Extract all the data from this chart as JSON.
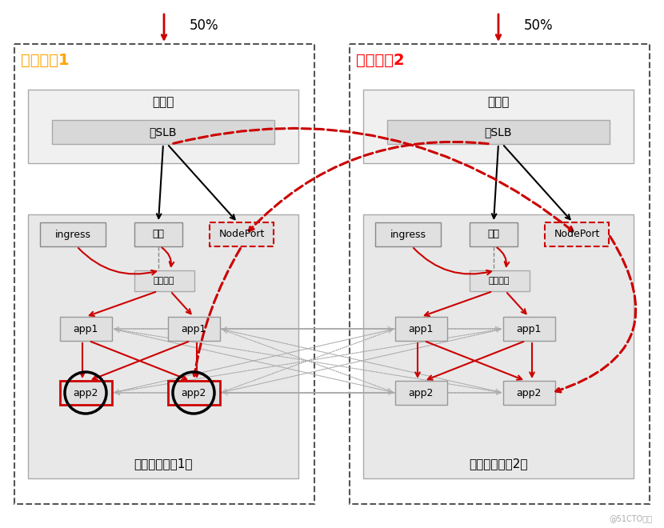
{
  "bg_color": "#ffffff",
  "title_50pct_left": "50%",
  "title_50pct_right": "50%",
  "dc1_label": "数据中心1",
  "dc2_label": "数据中心2",
  "dc1_label_color": "#FFA500",
  "dc2_label_color": "#FF0000",
  "access_layer": "接入层",
  "slb_label": "云SLB",
  "ingress_label": "ingress",
  "gateway_label": "网关",
  "nodeport_label": "NodePort",
  "reg_center_label": "注册中心",
  "app1_label": "app1",
  "app2_label": "app2",
  "cluster1_label": "应用层（集群1）",
  "cluster2_label": "应用层（集群2）",
  "watermark": "@51CTO博客"
}
